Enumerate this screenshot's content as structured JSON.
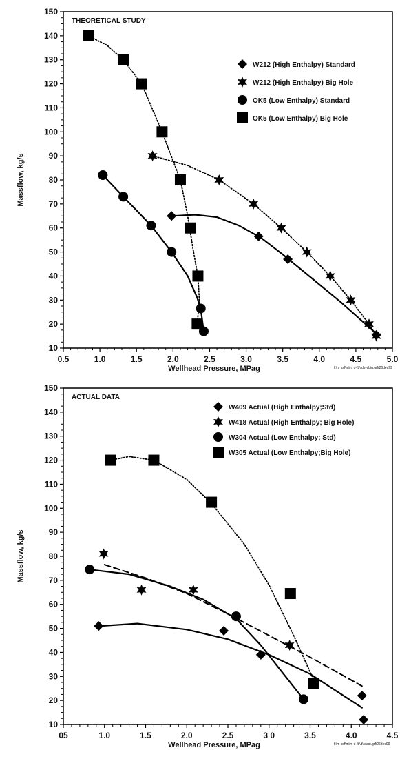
{
  "chart_data": [
    {
      "type": "scatter",
      "title": "THEORETICAL STUDY",
      "xlabel": "Wellhead Pressure, MPag",
      "ylabel": "Massflow, kg/s",
      "xlim": [
        0.5,
        5.0
      ],
      "ylim": [
        10,
        150
      ],
      "x_ticks": [
        "0.5",
        "1.0",
        "1.5",
        "2.0",
        "2.5",
        "3.0",
        "3.5",
        "4.0",
        "4.5",
        "5.0"
      ],
      "y_ticks": [
        "10",
        "20",
        "30",
        "40",
        "50",
        "60",
        "70",
        "80",
        "90",
        "100",
        "110",
        "120",
        "130",
        "140",
        "150"
      ],
      "legend_position": "top-right",
      "footnote": "f:\\m ssf\\m\\m d-fb\\fdsvsbig.grf/26dec99",
      "series": [
        {
          "name": "W212 (High Enthalpy) Standard",
          "marker": "diamond",
          "line": "solid",
          "points": [
            [
              1.98,
              65
            ],
            [
              3.17,
              56.5
            ],
            [
              3.57,
              47
            ],
            [
              4.78,
              15.5
            ]
          ],
          "curve": [
            [
              1.98,
              65
            ],
            [
              2.3,
              65.5
            ],
            [
              2.6,
              64.5
            ],
            [
              2.9,
              61
            ],
            [
              3.2,
              56
            ],
            [
              3.5,
              49
            ],
            [
              3.9,
              39
            ],
            [
              4.3,
              29
            ],
            [
              4.78,
              16
            ]
          ]
        },
        {
          "name": "W212 (High Enthalpy) Big Hole",
          "marker": "star",
          "line": "dotted",
          "points": [
            [
              1.72,
              90
            ],
            [
              2.63,
              80
            ],
            [
              3.1,
              70
            ],
            [
              3.48,
              60
            ],
            [
              3.83,
              50
            ],
            [
              4.15,
              40
            ],
            [
              4.43,
              30
            ],
            [
              4.68,
              20
            ],
            [
              4.78,
              15
            ]
          ],
          "curve": [
            [
              1.72,
              90
            ],
            [
              2.2,
              86
            ],
            [
              2.63,
              80
            ],
            [
              3.1,
              70
            ],
            [
              3.48,
              60
            ],
            [
              3.83,
              50
            ],
            [
              4.15,
              40
            ],
            [
              4.43,
              30
            ],
            [
              4.68,
              20
            ],
            [
              4.78,
              15
            ]
          ]
        },
        {
          "name": "OK5 (Low Enthalpy) Standard",
          "marker": "circle",
          "line": "solid",
          "points": [
            [
              1.04,
              82
            ],
            [
              1.32,
              73
            ],
            [
              1.7,
              61
            ],
            [
              1.98,
              50
            ],
            [
              2.38,
              26.5
            ],
            [
              2.42,
              17
            ]
          ],
          "curve": [
            [
              1.04,
              82
            ],
            [
              1.32,
              73
            ],
            [
              1.7,
              61
            ],
            [
              1.98,
              50
            ],
            [
              2.2,
              40
            ],
            [
              2.33,
              31
            ],
            [
              2.38,
              26
            ],
            [
              2.42,
              17
            ]
          ]
        },
        {
          "name": "OK5 (Low Enthalpy) Big Hole",
          "marker": "square",
          "line": "dotted",
          "points": [
            [
              0.84,
              140
            ],
            [
              1.32,
              130
            ],
            [
              1.57,
              120
            ],
            [
              1.85,
              100
            ],
            [
              2.1,
              80
            ],
            [
              2.24,
              60
            ],
            [
              2.34,
              40
            ],
            [
              2.33,
              20
            ]
          ],
          "curve": [
            [
              0.84,
              140
            ],
            [
              1.1,
              136
            ],
            [
              1.32,
              130
            ],
            [
              1.57,
              120
            ],
            [
              1.85,
              100
            ],
            [
              2.0,
              88
            ],
            [
              2.1,
              80
            ],
            [
              2.2,
              65
            ],
            [
              2.28,
              50
            ],
            [
              2.34,
              40
            ],
            [
              2.36,
              30
            ],
            [
              2.33,
              20
            ]
          ]
        }
      ]
    },
    {
      "type": "scatter",
      "title": "ACTUAL DATA",
      "xlabel": "Wellhead Pressure, MPag",
      "ylabel": "Massflow, kg/s",
      "xlim": [
        0.5,
        4.5
      ],
      "ylim": [
        10,
        150
      ],
      "x_ticks": [
        "05",
        "1.0",
        "1.5",
        "2.0",
        "2.5",
        "3 0",
        "3.5",
        "4.0",
        "4.5"
      ],
      "y_ticks": [
        "10",
        "20",
        "30",
        "40",
        "50",
        "60",
        "70",
        "80",
        "90",
        "100",
        "110",
        "120",
        "130",
        "140",
        "150"
      ],
      "legend_position": "top-right",
      "footnote": "f:\\m ssf\\m\\m d-fb\\d\\tdact.grf/26dec99",
      "series": [
        {
          "name": "W409 Actual (High Enthalpy;Std)",
          "marker": "diamond",
          "line": "solid",
          "points": [
            [
              0.93,
              51
            ],
            [
              2.45,
              49
            ],
            [
              2.9,
              39
            ],
            [
              4.13,
              22
            ],
            [
              4.15,
              12
            ]
          ],
          "curve": [
            [
              0.95,
              51
            ],
            [
              1.4,
              52
            ],
            [
              2.0,
              49.5
            ],
            [
              2.5,
              45.5
            ],
            [
              3.0,
              39
            ],
            [
              3.5,
              31
            ],
            [
              4.13,
              17
            ]
          ]
        },
        {
          "name": "W418 Actual (High Enthalpy; Big Hole)",
          "marker": "star",
          "line": "dashed",
          "points": [
            [
              0.99,
              81
            ],
            [
              1.45,
              66
            ],
            [
              2.08,
              66
            ],
            [
              3.25,
              43
            ]
          ],
          "curve": [
            [
              1.0,
              76.5
            ],
            [
              1.5,
              71
            ],
            [
              2.0,
              64.5
            ],
            [
              2.5,
              56
            ],
            [
              3.0,
              47
            ],
            [
              3.5,
              38
            ],
            [
              4.13,
              26
            ]
          ]
        },
        {
          "name": "W304 Actual (Low Enthalpy; Std)",
          "marker": "circle",
          "line": "solid",
          "points": [
            [
              0.82,
              74.5
            ],
            [
              2.6,
              55
            ],
            [
              3.42,
              20.5
            ]
          ],
          "curve": [
            [
              0.82,
              74.5
            ],
            [
              1.3,
              72.5
            ],
            [
              1.8,
              67.5
            ],
            [
              2.2,
              62
            ],
            [
              2.6,
              54
            ],
            [
              2.9,
              43
            ],
            [
              3.2,
              30
            ],
            [
              3.42,
              20.5
            ]
          ]
        },
        {
          "name": "W305 Actual (Low Enthalpy;Big Hole)",
          "marker": "square",
          "line": "dotted",
          "points": [
            [
              1.07,
              120
            ],
            [
              1.6,
              120
            ],
            [
              2.3,
              102.5
            ],
            [
              3.26,
              64.5
            ],
            [
              3.54,
              27
            ]
          ],
          "curve": [
            [
              1.07,
              120
            ],
            [
              1.3,
              121.5
            ],
            [
              1.6,
              120
            ],
            [
              2.0,
              112
            ],
            [
              2.3,
              102
            ],
            [
              2.7,
              85
            ],
            [
              3.0,
              68
            ],
            [
              3.3,
              47
            ],
            [
              3.55,
              28
            ]
          ]
        }
      ]
    }
  ]
}
